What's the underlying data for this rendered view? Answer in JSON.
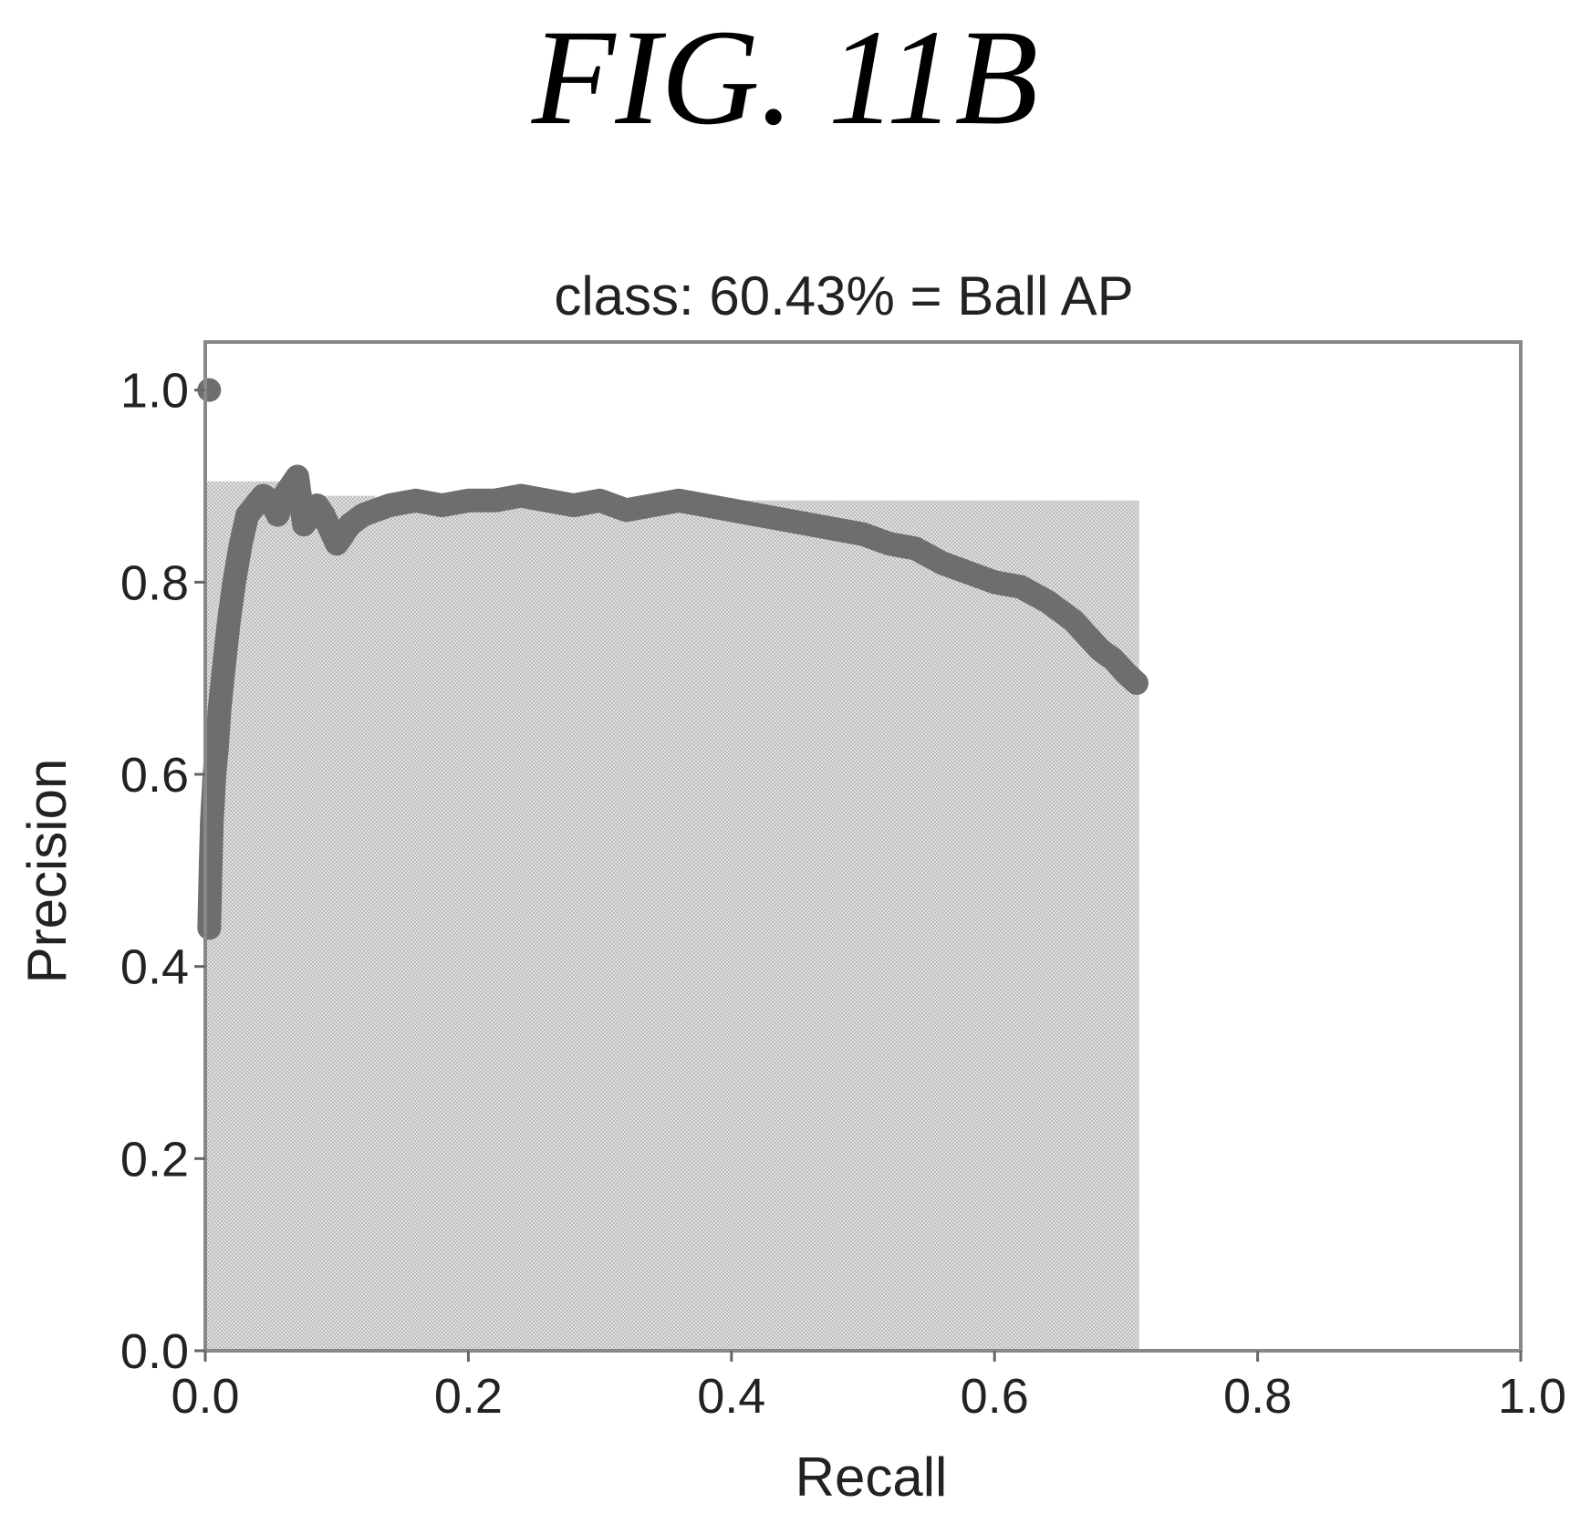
{
  "figure_label": "FIG. 11B",
  "chart_data": {
    "type": "area",
    "title": "class: 60.43% = Ball AP",
    "xlabel": "Recall",
    "ylabel": "Precision",
    "xlim": [
      0,
      1
    ],
    "ylim": [
      0,
      1.05
    ],
    "xticks": [
      "0.0",
      "0.2",
      "0.4",
      "0.6",
      "0.8",
      "1.0"
    ],
    "yticks": [
      "0.0",
      "0.2",
      "0.4",
      "0.6",
      "0.8",
      "1.0"
    ],
    "grid": false,
    "colors": {
      "curve": "#6e6e6e",
      "fill": "#d2d2d2",
      "frame": "#888888"
    },
    "curve": {
      "x": [
        0.003,
        0.004,
        0.005,
        0.007,
        0.009,
        0.011,
        0.014,
        0.018,
        0.022,
        0.027,
        0.032,
        0.038,
        0.044,
        0.05,
        0.055,
        0.06,
        0.065,
        0.07,
        0.075,
        0.08,
        0.085,
        0.09,
        0.1,
        0.11,
        0.12,
        0.14,
        0.16,
        0.18,
        0.2,
        0.22,
        0.24,
        0.26,
        0.28,
        0.3,
        0.32,
        0.34,
        0.36,
        0.38,
        0.4,
        0.42,
        0.44,
        0.46,
        0.48,
        0.5,
        0.52,
        0.54,
        0.56,
        0.58,
        0.6,
        0.62,
        0.64,
        0.66,
        0.68,
        0.69,
        0.7,
        0.708
      ],
      "y": [
        0.44,
        0.5,
        0.55,
        0.6,
        0.63,
        0.67,
        0.71,
        0.76,
        0.8,
        0.84,
        0.87,
        0.88,
        0.89,
        0.885,
        0.87,
        0.89,
        0.9,
        0.91,
        0.86,
        0.87,
        0.88,
        0.87,
        0.84,
        0.86,
        0.87,
        0.88,
        0.885,
        0.88,
        0.885,
        0.885,
        0.89,
        0.885,
        0.88,
        0.885,
        0.875,
        0.88,
        0.885,
        0.88,
        0.875,
        0.87,
        0.865,
        0.86,
        0.855,
        0.85,
        0.84,
        0.835,
        0.82,
        0.81,
        0.8,
        0.795,
        0.78,
        0.76,
        0.73,
        0.72,
        0.705,
        0.695
      ],
      "extra_points": [
        {
          "x": 0.003,
          "y": 1.0
        }
      ]
    },
    "area": {
      "x": [
        0.0,
        0.07,
        0.07,
        0.13,
        0.13,
        0.71,
        0.71
      ],
      "y": [
        0.905,
        0.905,
        0.89,
        0.89,
        0.885,
        0.885,
        0.0
      ]
    }
  }
}
